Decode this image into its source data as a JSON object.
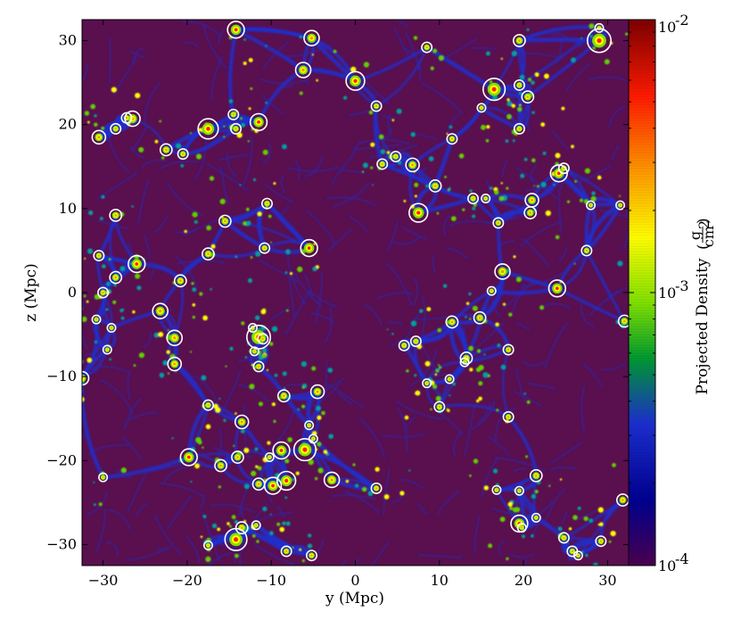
{
  "chart_data": {
    "type": "heatmap",
    "title": "",
    "xlabel": "y  (Mpc)",
    "ylabel": "z  (Mpc)",
    "xlim": [
      -32.5,
      32.5
    ],
    "ylim": [
      -32.5,
      32.5
    ],
    "x_ticks": [
      -30,
      -20,
      -10,
      0,
      10,
      20,
      30
    ],
    "x_tick_labels": [
      "−30",
      "−20",
      "−10",
      "0",
      "10",
      "20",
      "30"
    ],
    "y_ticks": [
      -30,
      -20,
      -10,
      0,
      10,
      20,
      30
    ],
    "y_tick_labels": [
      "−30",
      "−20",
      "−10",
      "0",
      "10",
      "20",
      "30"
    ],
    "grid": false,
    "colorbar": {
      "label": "Projected Density",
      "unit_numerator": "g",
      "unit_denominator": "cm",
      "unit_exponent": "2",
      "scale": "log",
      "range": [
        0.0001,
        0.01
      ],
      "ticks": [
        {
          "value": 0.01,
          "base": "10",
          "exp": "-2"
        },
        {
          "value": 0.001,
          "base": "10",
          "exp": "-3"
        },
        {
          "value": 0.0001,
          "base": "10",
          "exp": "-4"
        }
      ],
      "colormap": [
        "#7f0000",
        "#ff0000",
        "#ff8000",
        "#ffff00",
        "#80ff00",
        "#00a000",
        "#0000ff",
        "#000080",
        "#4b0050"
      ]
    },
    "background_color": "#5a0f4e",
    "filament_color": "#1c2fd0",
    "halo_circle_color": "#ffffff",
    "halos": [
      {
        "y": -14.2,
        "z": 31.3,
        "r": 1.0
      },
      {
        "y": -5.2,
        "z": 30.3,
        "r": 0.9
      },
      {
        "y": 8.5,
        "z": 29.2,
        "r": 0.6
      },
      {
        "y": 19.5,
        "z": 30.0,
        "r": 0.7
      },
      {
        "y": 29.0,
        "z": 30.0,
        "r": 1.4
      },
      {
        "y": 29.0,
        "z": 31.5,
        "r": 0.5
      },
      {
        "y": -6.2,
        "z": 26.5,
        "r": 0.9
      },
      {
        "y": 0.0,
        "z": 25.2,
        "r": 1.1
      },
      {
        "y": 16.5,
        "z": 24.2,
        "r": 1.3
      },
      {
        "y": 19.5,
        "z": 24.7,
        "r": 0.6
      },
      {
        "y": 20.5,
        "z": 23.3,
        "r": 0.7
      },
      {
        "y": 2.5,
        "z": 22.2,
        "r": 0.6
      },
      {
        "y": 15.0,
        "z": 22.0,
        "r": 0.5
      },
      {
        "y": -26.5,
        "z": 20.7,
        "r": 0.9
      },
      {
        "y": -27.2,
        "z": 20.8,
        "r": 0.6
      },
      {
        "y": -17.5,
        "z": 19.5,
        "r": 1.2
      },
      {
        "y": -14.5,
        "z": 21.2,
        "r": 0.6
      },
      {
        "y": -14.2,
        "z": 19.5,
        "r": 0.6
      },
      {
        "y": -11.5,
        "z": 20.3,
        "r": 1.0
      },
      {
        "y": -28.5,
        "z": 19.5,
        "r": 0.6
      },
      {
        "y": -30.5,
        "z": 18.5,
        "r": 0.8
      },
      {
        "y": 19.5,
        "z": 19.5,
        "r": 0.6
      },
      {
        "y": 11.5,
        "z": 18.3,
        "r": 0.6
      },
      {
        "y": -22.5,
        "z": 17.0,
        "r": 0.7
      },
      {
        "y": -20.5,
        "z": 16.5,
        "r": 0.6
      },
      {
        "y": 3.2,
        "z": 15.3,
        "r": 0.6
      },
      {
        "y": 4.8,
        "z": 16.2,
        "r": 0.6
      },
      {
        "y": 6.8,
        "z": 15.2,
        "r": 0.8
      },
      {
        "y": 24.2,
        "z": 14.2,
        "r": 1.0
      },
      {
        "y": 24.8,
        "z": 14.8,
        "r": 0.6
      },
      {
        "y": 9.5,
        "z": 12.7,
        "r": 0.7
      },
      {
        "y": 14.0,
        "z": 11.2,
        "r": 0.6
      },
      {
        "y": 15.5,
        "z": 11.2,
        "r": 0.5
      },
      {
        "y": 21.0,
        "z": 11.0,
        "r": 0.8
      },
      {
        "y": 20.8,
        "z": 9.5,
        "r": 0.7
      },
      {
        "y": -10.5,
        "z": 10.6,
        "r": 0.6
      },
      {
        "y": 7.5,
        "z": 9.5,
        "r": 1.1
      },
      {
        "y": 17.0,
        "z": 8.3,
        "r": 0.6
      },
      {
        "y": 28.0,
        "z": 10.4,
        "r": 0.5
      },
      {
        "y": 31.5,
        "z": 10.4,
        "r": 0.5
      },
      {
        "y": -28.5,
        "z": 9.2,
        "r": 0.7
      },
      {
        "y": -15.5,
        "z": 8.5,
        "r": 0.7
      },
      {
        "y": -10.8,
        "z": 5.3,
        "r": 0.6
      },
      {
        "y": -5.5,
        "z": 5.3,
        "r": 1.0
      },
      {
        "y": 27.5,
        "z": 5.0,
        "r": 0.6
      },
      {
        "y": -30.5,
        "z": 4.4,
        "r": 0.6
      },
      {
        "y": -17.5,
        "z": 4.6,
        "r": 0.7
      },
      {
        "y": -26.0,
        "z": 3.4,
        "r": 1.0
      },
      {
        "y": 17.5,
        "z": 2.5,
        "r": 0.9
      },
      {
        "y": -28.5,
        "z": 1.8,
        "r": 0.7
      },
      {
        "y": -20.8,
        "z": 1.4,
        "r": 0.7
      },
      {
        "y": 24.0,
        "z": 0.5,
        "r": 1.0
      },
      {
        "y": 16.2,
        "z": 0.2,
        "r": 0.5
      },
      {
        "y": -30.0,
        "z": 0.0,
        "r": 0.6
      },
      {
        "y": -23.2,
        "z": -2.2,
        "r": 0.9
      },
      {
        "y": -30.8,
        "z": -3.2,
        "r": 0.5
      },
      {
        "y": -12.2,
        "z": -4.2,
        "r": 0.5
      },
      {
        "y": -29.0,
        "z": -4.2,
        "r": 0.5
      },
      {
        "y": -21.5,
        "z": -5.4,
        "r": 0.9
      },
      {
        "y": -11.5,
        "z": -5.3,
        "r": 1.4
      },
      {
        "y": -11.0,
        "z": -5.5,
        "r": 0.6
      },
      {
        "y": 11.5,
        "z": -3.5,
        "r": 0.7
      },
      {
        "y": 14.8,
        "z": -3.0,
        "r": 0.7
      },
      {
        "y": 32.0,
        "z": -3.4,
        "r": 0.7
      },
      {
        "y": 5.8,
        "z": -6.3,
        "r": 0.6
      },
      {
        "y": 7.2,
        "z": -5.8,
        "r": 0.6
      },
      {
        "y": -12.0,
        "z": -7.0,
        "r": 0.5
      },
      {
        "y": -29.5,
        "z": -6.8,
        "r": 0.5
      },
      {
        "y": 13.2,
        "z": -7.8,
        "r": 0.7
      },
      {
        "y": 13.0,
        "z": -8.3,
        "r": 0.5
      },
      {
        "y": 18.2,
        "z": -6.8,
        "r": 0.6
      },
      {
        "y": -21.5,
        "z": -8.5,
        "r": 0.8
      },
      {
        "y": -11.5,
        "z": -8.8,
        "r": 0.6
      },
      {
        "y": -32.5,
        "z": -10.2,
        "r": 0.8
      },
      {
        "y": 8.5,
        "z": -10.8,
        "r": 0.5
      },
      {
        "y": 11.2,
        "z": -10.3,
        "r": 0.5
      },
      {
        "y": -4.5,
        "z": -11.8,
        "r": 0.8
      },
      {
        "y": -8.5,
        "z": -12.3,
        "r": 0.7
      },
      {
        "y": -17.5,
        "z": -13.4,
        "r": 0.6
      },
      {
        "y": 10.0,
        "z": -13.6,
        "r": 0.6
      },
      {
        "y": -13.5,
        "z": -15.4,
        "r": 0.8
      },
      {
        "y": -5.5,
        "z": -15.8,
        "r": 0.5
      },
      {
        "y": 18.2,
        "z": -14.8,
        "r": 0.6
      },
      {
        "y": -5.0,
        "z": -17.4,
        "r": 0.5
      },
      {
        "y": -6.0,
        "z": -18.7,
        "r": 1.3
      },
      {
        "y": -8.8,
        "z": -18.8,
        "r": 1.0
      },
      {
        "y": -10.2,
        "z": -19.6,
        "r": 0.5
      },
      {
        "y": -14.0,
        "z": -19.6,
        "r": 0.7
      },
      {
        "y": -19.8,
        "z": -19.6,
        "r": 1.0
      },
      {
        "y": -16.0,
        "z": -20.6,
        "r": 0.7
      },
      {
        "y": -11.5,
        "z": -22.8,
        "r": 0.7
      },
      {
        "y": -9.8,
        "z": -23.0,
        "r": 1.0
      },
      {
        "y": -8.2,
        "z": -22.4,
        "r": 1.1
      },
      {
        "y": -2.8,
        "z": -22.3,
        "r": 0.9
      },
      {
        "y": 2.5,
        "z": -23.3,
        "r": 0.6
      },
      {
        "y": -30.0,
        "z": -22.0,
        "r": 0.5
      },
      {
        "y": 16.8,
        "z": -23.5,
        "r": 0.5
      },
      {
        "y": 19.5,
        "z": -23.6,
        "r": 0.5
      },
      {
        "y": 21.5,
        "z": -21.8,
        "r": 0.7
      },
      {
        "y": 31.8,
        "z": -24.7,
        "r": 0.7
      },
      {
        "y": 21.5,
        "z": -26.8,
        "r": 0.5
      },
      {
        "y": 19.5,
        "z": -27.5,
        "r": 1.0
      },
      {
        "y": 19.8,
        "z": -28.0,
        "r": 0.5
      },
      {
        "y": -13.5,
        "z": -28.0,
        "r": 0.7
      },
      {
        "y": -11.8,
        "z": -27.7,
        "r": 0.5
      },
      {
        "y": -14.2,
        "z": -29.4,
        "r": 1.3
      },
      {
        "y": -17.5,
        "z": -30.1,
        "r": 0.5
      },
      {
        "y": 24.8,
        "z": -29.2,
        "r": 0.6
      },
      {
        "y": 29.2,
        "z": -29.6,
        "r": 0.6
      },
      {
        "y": -8.2,
        "z": -30.8,
        "r": 0.6
      },
      {
        "y": -5.2,
        "z": -31.3,
        "r": 0.6
      },
      {
        "y": 25.8,
        "z": -30.8,
        "r": 0.6
      },
      {
        "y": 26.5,
        "z": -31.3,
        "r": 0.5
      }
    ]
  }
}
